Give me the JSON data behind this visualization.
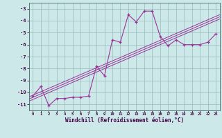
{
  "x_data": [
    0,
    1,
    2,
    3,
    4,
    5,
    6,
    7,
    8,
    9,
    10,
    11,
    12,
    13,
    14,
    15,
    16,
    17,
    18,
    19,
    20,
    21,
    22,
    23
  ],
  "y_data": [
    -10.3,
    -9.5,
    -11.1,
    -10.5,
    -10.5,
    -10.4,
    -10.4,
    -10.3,
    -7.8,
    -8.6,
    -5.6,
    -5.8,
    -3.5,
    -4.1,
    -3.2,
    -3.2,
    -5.3,
    -6.1,
    -5.6,
    -6.0,
    -6.0,
    -6.0,
    -5.8,
    -5.1
  ],
  "title": "",
  "xlabel": "Windchill (Refroidissement éolien,°C)",
  "xlim": [
    -0.5,
    23.5
  ],
  "ylim": [
    -11.5,
    -2.5
  ],
  "yticks": [
    -3,
    -4,
    -5,
    -6,
    -7,
    -8,
    -9,
    -10,
    -11
  ],
  "xticks": [
    0,
    1,
    2,
    3,
    4,
    5,
    6,
    7,
    8,
    9,
    10,
    11,
    12,
    13,
    14,
    15,
    16,
    17,
    18,
    19,
    20,
    21,
    22,
    23
  ],
  "line_color": "#993399",
  "bg_color": "#cce8e8",
  "grid_color": "#99bbbb",
  "reg_offsets": [
    -0.18,
    0.0,
    0.18
  ]
}
